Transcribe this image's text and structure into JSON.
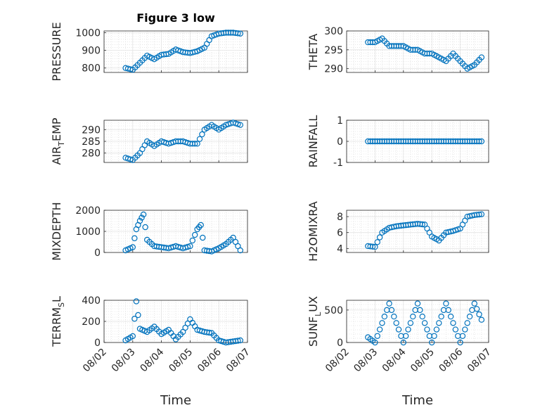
{
  "title": "Figure 3 low",
  "xlabel": "Time",
  "colors": {
    "marker": "#0072BD",
    "axis": "#262626",
    "grid": "#d6d6d6"
  },
  "chart_data": [
    {
      "type": "scatter",
      "ylabel": "PRESSURE",
      "ylabel_sub": "",
      "ylabel_sub_index": -1,
      "ylim": [
        775,
        1010
      ],
      "yticks": [
        800,
        900,
        1000
      ],
      "xticklabels_shown": false,
      "x": [
        "08/02 18:00",
        "08/03 00:00",
        "08/03 06:00",
        "08/03 12:00",
        "08/03 18:00",
        "08/04 00:00",
        "08/04 06:00",
        "08/04 12:00",
        "08/04 18:00",
        "08/05 00:00",
        "08/05 06:00",
        "08/05 12:00",
        "08/05 18:00",
        "08/06 00:00",
        "08/06 06:00",
        "08/06 12:00",
        "08/06 18:00"
      ],
      "y": [
        800,
        790,
        830,
        870,
        850,
        875,
        880,
        905,
        890,
        885,
        895,
        915,
        980,
        995,
        1000,
        1000,
        995
      ]
    },
    {
      "type": "scatter",
      "ylabel": "THETA",
      "ylabel_sub": "",
      "ylabel_sub_index": -1,
      "ylim": [
        289,
        300
      ],
      "yticks": [
        290,
        295,
        300
      ],
      "xticklabels_shown": false,
      "x": [
        "08/02 18:00",
        "08/03 00:00",
        "08/03 06:00",
        "08/03 12:00",
        "08/03 18:00",
        "08/04 00:00",
        "08/04 06:00",
        "08/04 12:00",
        "08/04 18:00",
        "08/05 00:00",
        "08/05 06:00",
        "08/05 12:00",
        "08/05 18:00",
        "08/06 00:00",
        "08/06 06:00",
        "08/06 12:00",
        "08/06 18:00"
      ],
      "y": [
        297,
        297,
        298,
        296,
        296,
        296,
        295,
        295,
        294,
        294,
        293,
        292,
        294,
        292,
        290,
        291,
        293
      ]
    },
    {
      "type": "scatter",
      "ylabel": "AIR_TEMP",
      "ylabel_sub": "T",
      "ylabel_sub_index": 3,
      "ylim": [
        276,
        294
      ],
      "yticks": [
        280,
        285,
        290
      ],
      "xticklabels_shown": false,
      "x": [
        "08/02 18:00",
        "08/03 00:00",
        "08/03 06:00",
        "08/03 12:00",
        "08/03 18:00",
        "08/04 00:00",
        "08/04 06:00",
        "08/04 12:00",
        "08/04 18:00",
        "08/05 00:00",
        "08/05 06:00",
        "08/05 12:00",
        "08/05 18:00",
        "08/06 00:00",
        "08/06 06:00",
        "08/06 12:00",
        "08/06 18:00"
      ],
      "y": [
        278,
        277,
        280,
        285,
        283,
        285,
        284,
        285,
        285,
        284,
        284,
        290,
        292,
        290,
        292,
        293,
        292
      ]
    },
    {
      "type": "scatter",
      "ylabel": "RAINFALL",
      "ylabel_sub": "",
      "ylabel_sub_index": -1,
      "ylim": [
        -1,
        1
      ],
      "yticks": [
        -1,
        0,
        1
      ],
      "xticklabels_shown": false,
      "x": [
        "08/02 18:00",
        "08/03 00:00",
        "08/03 06:00",
        "08/03 12:00",
        "08/03 18:00",
        "08/04 00:00",
        "08/04 06:00",
        "08/04 12:00",
        "08/04 18:00",
        "08/05 00:00",
        "08/05 06:00",
        "08/05 12:00",
        "08/05 18:00",
        "08/06 00:00",
        "08/06 06:00",
        "08/06 12:00",
        "08/06 18:00"
      ],
      "y": [
        0,
        0,
        0,
        0,
        0,
        0,
        0,
        0,
        0,
        0,
        0,
        0,
        0,
        0,
        0,
        0,
        0
      ]
    },
    {
      "type": "scatter",
      "ylabel": "MIXDEPTH",
      "ylabel_sub": "",
      "ylabel_sub_index": -1,
      "ylim": [
        0,
        2000
      ],
      "yticks": [
        0,
        1000,
        2000
      ],
      "xticklabels_shown": false,
      "x": [
        "08/02 18:00",
        "08/03 00:00",
        "08/03 03:00",
        "08/03 06:00",
        "08/03 09:00",
        "08/03 12:00",
        "08/03 18:00",
        "08/04 00:00",
        "08/04 06:00",
        "08/04 12:00",
        "08/04 18:00",
        "08/05 00:00",
        "08/05 06:00",
        "08/05 09:00",
        "08/05 12:00",
        "08/05 18:00",
        "08/06 00:00",
        "08/06 06:00",
        "08/06 12:00",
        "08/06 18:00"
      ],
      "y": [
        100,
        250,
        1100,
        1500,
        1800,
        600,
        300,
        250,
        200,
        300,
        200,
        300,
        1100,
        1300,
        100,
        50,
        200,
        400,
        700,
        100
      ]
    },
    {
      "type": "scatter",
      "ylabel": "H2OMIXRA",
      "ylabel_sub": "",
      "ylabel_sub_index": -1,
      "ylim": [
        3.5,
        8.8
      ],
      "yticks": [
        4,
        6,
        8
      ],
      "xticklabels_shown": false,
      "x": [
        "08/02 18:00",
        "08/03 00:00",
        "08/03 06:00",
        "08/03 12:00",
        "08/03 18:00",
        "08/04 00:00",
        "08/04 06:00",
        "08/04 12:00",
        "08/04 18:00",
        "08/05 00:00",
        "08/05 06:00",
        "08/05 12:00",
        "08/05 18:00",
        "08/06 00:00",
        "08/06 06:00",
        "08/06 12:00",
        "08/06 18:00"
      ],
      "y": [
        4.3,
        4.2,
        6,
        6.6,
        6.8,
        6.9,
        7,
        7.1,
        7,
        5.5,
        5,
        6,
        6.2,
        6.5,
        8,
        8.2,
        8.3
      ]
    },
    {
      "type": "scatter",
      "ylabel": "TERR_MSL",
      "ylabel_sub": "M",
      "ylabel_sub_index": 5,
      "ylim": [
        0,
        400
      ],
      "yticks": [
        0,
        200,
        400
      ],
      "xticklabels_shown": true,
      "x": [
        "08/02 18:00",
        "08/03 00:00",
        "08/03 03:00",
        "08/03 06:00",
        "08/03 12:00",
        "08/03 18:00",
        "08/04 00:00",
        "08/04 06:00",
        "08/04 12:00",
        "08/04 18:00",
        "08/05 00:00",
        "08/05 06:00",
        "08/05 12:00",
        "08/05 18:00",
        "08/06 00:00",
        "08/06 06:00",
        "08/06 12:00",
        "08/06 18:00"
      ],
      "y": [
        20,
        60,
        390,
        130,
        100,
        150,
        80,
        120,
        30,
        100,
        220,
        120,
        100,
        90,
        20,
        0,
        10,
        20
      ]
    },
    {
      "type": "scatter",
      "ylabel": "SUN_FLUX",
      "ylabel_sub": "F",
      "ylabel_sub_index": 4,
      "ylim": [
        0,
        650
      ],
      "yticks": [
        0,
        500
      ],
      "xticklabels_shown": true,
      "x": [
        "08/02 18:00",
        "08/03 00:00",
        "08/03 06:00",
        "08/03 12:00",
        "08/03 18:00",
        "08/04 00:00",
        "08/04 06:00",
        "08/04 12:00",
        "08/04 18:00",
        "08/05 00:00",
        "08/05 06:00",
        "08/05 12:00",
        "08/05 18:00",
        "08/06 00:00",
        "08/06 06:00",
        "08/06 12:00",
        "08/06 18:00"
      ],
      "y": [
        80,
        0,
        300,
        600,
        300,
        0,
        300,
        600,
        300,
        0,
        300,
        600,
        300,
        0,
        300,
        600,
        350
      ]
    }
  ],
  "xlim": [
    "08/02 00:00",
    "08/07 00:00"
  ],
  "xticklabels": [
    "08/02",
    "08/03",
    "08/04",
    "08/05",
    "08/06",
    "08/07"
  ]
}
